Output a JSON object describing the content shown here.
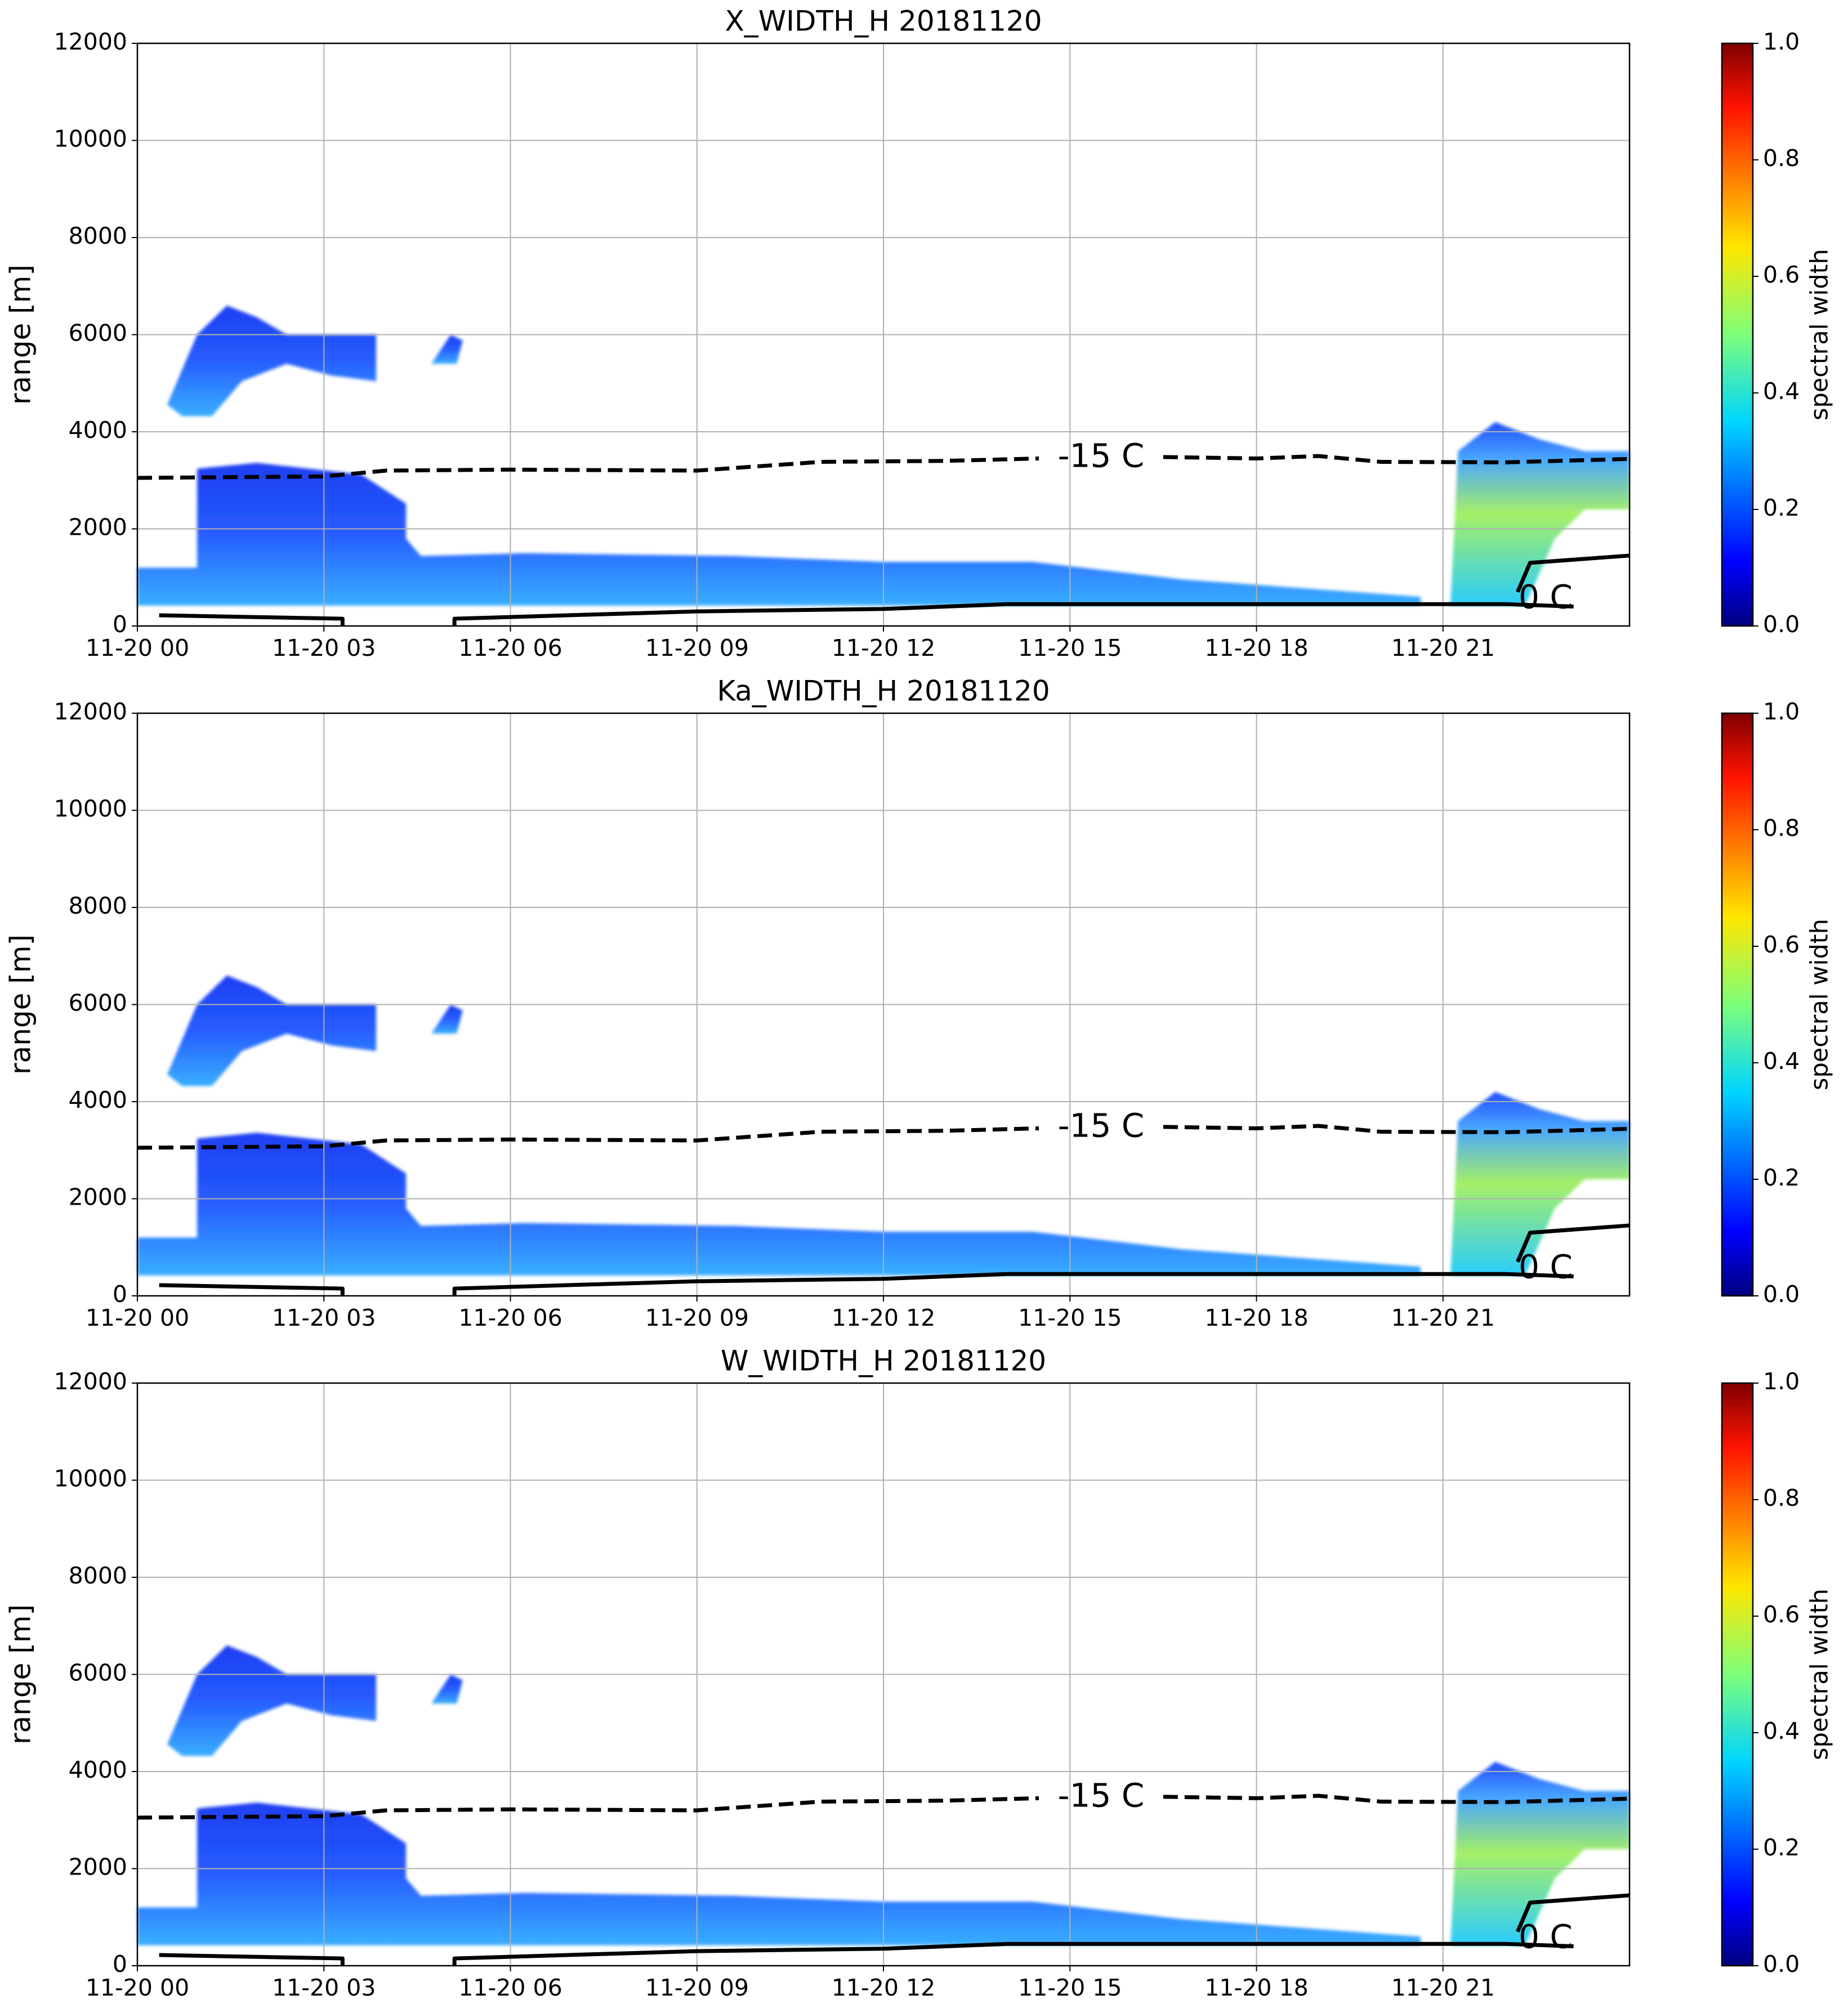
{
  "chart_data": [
    {
      "type": "heatmap",
      "title": "X_WIDTH_H 20181120",
      "ylabel": "range [m]",
      "xlim": [
        0,
        24
      ],
      "xticks": [
        {
          "value": 0,
          "label": "11-20 00"
        },
        {
          "value": 3,
          "label": "11-20 03"
        },
        {
          "value": 6,
          "label": "11-20 06"
        },
        {
          "value": 9,
          "label": "11-20 09"
        },
        {
          "value": 12,
          "label": "11-20 12"
        },
        {
          "value": 15,
          "label": "11-20 15"
        },
        {
          "value": 18,
          "label": "11-20 18"
        },
        {
          "value": 21,
          "label": "11-20 21"
        }
      ],
      "ylim": [
        0,
        12000
      ],
      "yticks": [
        0,
        2000,
        4000,
        6000,
        8000,
        10000,
        12000
      ],
      "grid": true,
      "colorbar": {
        "label": "spectral width",
        "lim": [
          0,
          1
        ],
        "ticks": [
          {
            "value": 0,
            "label": "0.0"
          },
          0.2,
          0.4,
          0.6,
          0.8,
          {
            "value": 1,
            "label": "1.0"
          }
        ]
      },
      "contours": [
        {
          "label": "-15 C",
          "style": "dashed",
          "x": [
            0,
            3,
            4,
            6,
            9,
            11,
            13,
            14.5,
            null,
            16.5,
            18,
            19,
            20,
            22,
            24
          ],
          "values": [
            3050,
            3080,
            3200,
            3220,
            3200,
            3380,
            3400,
            3450,
            null,
            3480,
            3450,
            3500,
            3380,
            3370,
            3440
          ]
        },
        {
          "label": "0 C",
          "style": "solid",
          "x": [
            0.35,
            3.3,
            3.3,
            null,
            5.1,
            5.1,
            9,
            12,
            14,
            18,
            22,
            23.1,
            null,
            22.2,
            22.4,
            24
          ],
          "values": [
            220,
            150,
            0,
            null,
            0,
            150,
            300,
            350,
            450,
            450,
            450,
            400,
            null,
            700,
            1300,
            1450
          ]
        }
      ]
    },
    {
      "type": "heatmap",
      "title": "Ka_WIDTH_H 20181120",
      "ylabel": "range [m]",
      "xlim": [
        0,
        24
      ],
      "xticks": [
        {
          "value": 0,
          "label": "11-20 00"
        },
        {
          "value": 3,
          "label": "11-20 03"
        },
        {
          "value": 6,
          "label": "11-20 06"
        },
        {
          "value": 9,
          "label": "11-20 09"
        },
        {
          "value": 12,
          "label": "11-20 12"
        },
        {
          "value": 15,
          "label": "11-20 15"
        },
        {
          "value": 18,
          "label": "11-20 18"
        },
        {
          "value": 21,
          "label": "11-20 21"
        }
      ],
      "ylim": [
        0,
        12000
      ],
      "yticks": [
        0,
        2000,
        4000,
        6000,
        8000,
        10000,
        12000
      ],
      "grid": true,
      "colorbar": {
        "label": "spectral width",
        "lim": [
          0,
          1
        ],
        "ticks": [
          {
            "value": 0,
            "label": "0.0"
          },
          0.2,
          0.4,
          0.6,
          0.8,
          {
            "value": 1,
            "label": "1.0"
          }
        ]
      },
      "contours": [
        {
          "label": "-15 C",
          "style": "dashed",
          "x": [
            0,
            3,
            4,
            6,
            9,
            11,
            13,
            14.5,
            null,
            16.5,
            18,
            19,
            20,
            22,
            24
          ],
          "values": [
            3050,
            3080,
            3200,
            3220,
            3200,
            3380,
            3400,
            3450,
            null,
            3480,
            3450,
            3500,
            3380,
            3370,
            3440
          ]
        },
        {
          "label": "0 C",
          "style": "solid",
          "x": [
            0.35,
            3.3,
            3.3,
            null,
            5.1,
            5.1,
            9,
            12,
            14,
            18,
            22,
            23.1,
            null,
            22.2,
            22.4,
            24
          ],
          "values": [
            220,
            150,
            0,
            null,
            0,
            150,
            300,
            350,
            450,
            450,
            450,
            400,
            null,
            700,
            1300,
            1450
          ]
        }
      ]
    },
    {
      "type": "heatmap",
      "title": "W_WIDTH_H 20181120",
      "ylabel": "range [m]",
      "xlim": [
        0,
        24
      ],
      "xticks": [
        {
          "value": 0,
          "label": "11-20 00"
        },
        {
          "value": 3,
          "label": "11-20 03"
        },
        {
          "value": 6,
          "label": "11-20 06"
        },
        {
          "value": 9,
          "label": "11-20 09"
        },
        {
          "value": 12,
          "label": "11-20 12"
        },
        {
          "value": 15,
          "label": "11-20 15"
        },
        {
          "value": 18,
          "label": "11-20 18"
        },
        {
          "value": 21,
          "label": "11-20 21"
        }
      ],
      "ylim": [
        0,
        12000
      ],
      "yticks": [
        0,
        2000,
        4000,
        6000,
        8000,
        10000,
        12000
      ],
      "grid": true,
      "colorbar": {
        "label": "spectral width",
        "lim": [
          0,
          1
        ],
        "ticks": [
          {
            "value": 0,
            "label": "0.0"
          },
          0.2,
          0.4,
          0.6,
          0.8,
          {
            "value": 1,
            "label": "1.0"
          }
        ]
      },
      "contours": [
        {
          "label": "-15 C",
          "style": "dashed",
          "x": [
            0,
            3,
            4,
            6,
            9,
            11,
            13,
            14.5,
            null,
            16.5,
            18,
            19,
            20,
            22,
            24
          ],
          "values": [
            3050,
            3080,
            3200,
            3220,
            3200,
            3380,
            3400,
            3450,
            null,
            3480,
            3450,
            3500,
            3380,
            3370,
            3440
          ]
        },
        {
          "label": "0 C",
          "style": "solid",
          "x": [
            0.35,
            3.3,
            3.3,
            null,
            5.1,
            5.1,
            9,
            12,
            14,
            18,
            22,
            23.1,
            null,
            22.2,
            22.4,
            24
          ],
          "values": [
            220,
            150,
            0,
            null,
            0,
            150,
            300,
            350,
            450,
            450,
            450,
            400,
            null,
            700,
            1300,
            1450
          ]
        }
      ]
    }
  ]
}
